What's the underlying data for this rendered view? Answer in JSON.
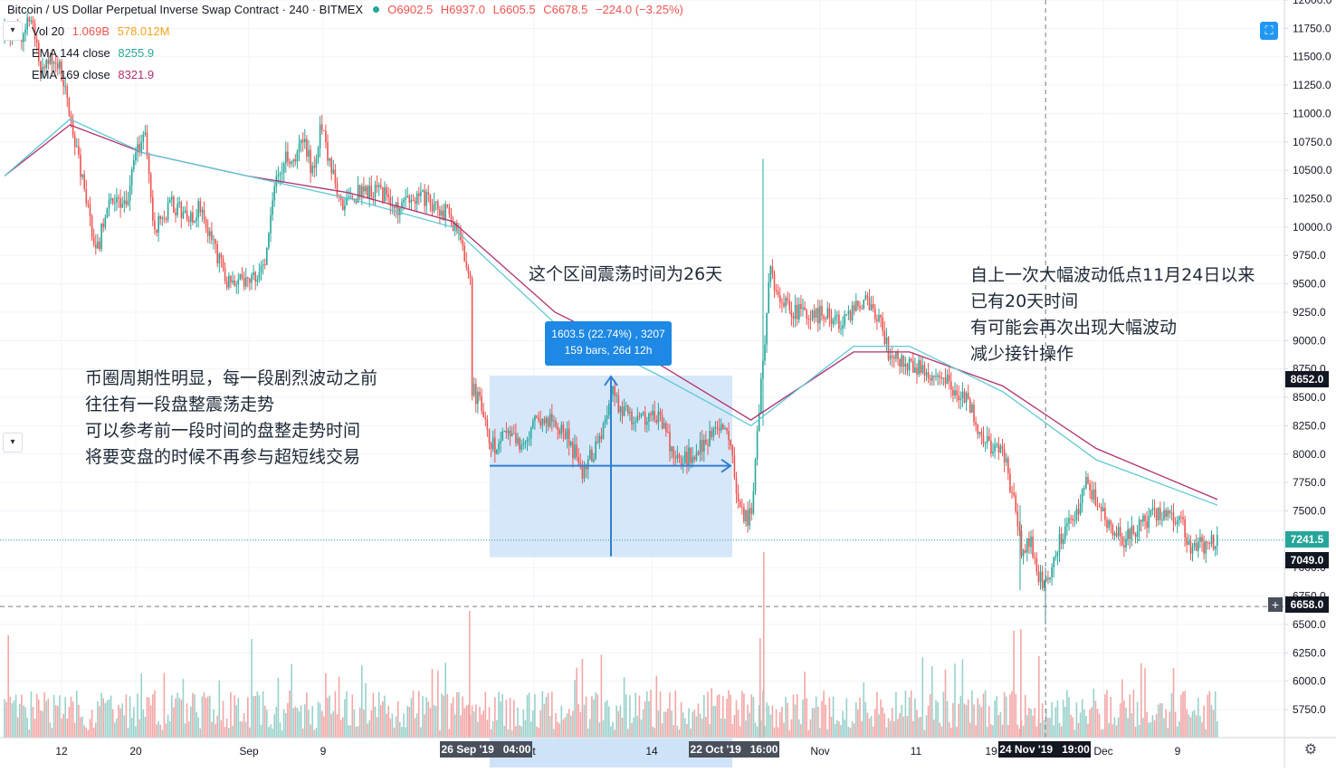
{
  "header": {
    "symbol": "Bitcoin / US Dollar Perpetual Inverse Swap Contract · 240 · BITMEX",
    "ohlc": {
      "open": "O6902.5",
      "high": "H6937.0",
      "low": "L6605.5",
      "close": "C6678.5",
      "change": "−224.0 (−3.25%)"
    }
  },
  "indicators": {
    "vol": {
      "label": "Vol 20",
      "v1": "1.069B",
      "v2": "578.012M"
    },
    "ema144": {
      "label": "EMA 144 close",
      "value": "8255.9"
    },
    "ema169": {
      "label": "EMA 169 close",
      "value": "8321.9"
    }
  },
  "annotations": {
    "range_title": "这个区间震荡时间为26天",
    "left_note": [
      "币圈周期性明显，每一段剧烈波动之前",
      "往往有一段盘整震荡走势",
      "可以参考前一段时间的盘整走势时间",
      "将要变盘的时候不再参与超短线交易"
    ],
    "right_note": [
      "自上一次大幅波动低点11月24日以来",
      "已有20天时间",
      "有可能会再次出现大幅波动",
      "减少接针操作"
    ],
    "measure_line1": "1603.5 (22.74%) , 3207",
    "measure_line2": "159 bars, 26d 12h"
  },
  "price_labels": {
    "ema169": "8652.0",
    "last": "7241.5",
    "ema144": "7049.0",
    "crosshair": "6658.0"
  },
  "time_labels": {
    "start": "26 Sep '19   04:00",
    "end": "22 Oct '19   16:00",
    "cross": "24 Nov '19   19:00"
  },
  "colors": {
    "up": "#26a69a",
    "down": "#ef5350",
    "vol_up": "#99d1cb",
    "vol_down": "#f4a6a6",
    "ema144": "#5ec8d6",
    "ema169": "#b0306e",
    "measure_fill": "#cfe3f8",
    "measure_line": "#2f80d0",
    "label_blue": "#1e88e5",
    "label_dark": "#131722"
  },
  "icons": [
    "gear-icon",
    "chevron-down-icon",
    "fullscreen-icon",
    "plus-icon"
  ],
  "chart_data": {
    "type": "candlestick",
    "title": "Bitcoin / US Dollar Perpetual Inverse Swap Contract · 240 · BITMEX",
    "ylim": [
      5500,
      12000
    ],
    "y_ticks": [
      5750,
      6000,
      6250,
      6500,
      6750,
      7000,
      7250,
      7500,
      7750,
      8000,
      8250,
      8500,
      8750,
      9000,
      9250,
      9500,
      9750,
      10000,
      10250,
      10500,
      10750,
      11000,
      11250,
      11500,
      11750,
      12000
    ],
    "y_tick_labels": [
      "5750.0",
      "6000.0",
      "6250.0",
      "6500.0",
      "6750.0",
      "7000.0",
      "7250.0",
      "7500.0",
      "7750.0",
      "8000.0",
      "8250.0",
      "8500.0",
      "8750.0",
      "9000.0",
      "9250.0",
      "9500.0",
      "9750.0",
      "10000.0",
      "10250.0",
      "10500.0",
      "10750.0",
      "11000.0",
      "11250.0",
      "11500.0",
      "11750.0",
      "12000.0"
    ],
    "x_labels": [
      "12",
      "20",
      "Sep",
      "9",
      "t",
      "14",
      "Nov",
      "11",
      "19",
      "Dec",
      "9"
    ],
    "price_path": [
      {
        "date": "2019-08-05",
        "price": 11700
      },
      {
        "date": "2019-08-07",
        "price": 11700
      },
      {
        "date": "2019-08-08",
        "price": 11850
      },
      {
        "date": "2019-08-09",
        "price": 11350
      },
      {
        "date": "2019-08-10",
        "price": 11500
      },
      {
        "date": "2019-08-11",
        "price": 11400
      },
      {
        "date": "2019-08-12",
        "price": 11000
      },
      {
        "date": "2019-08-14",
        "price": 10100
      },
      {
        "date": "2019-08-15",
        "price": 9800
      },
      {
        "date": "2019-08-16",
        "price": 10200
      },
      {
        "date": "2019-08-17",
        "price": 10300
      },
      {
        "date": "2019-08-18",
        "price": 10150
      },
      {
        "date": "2019-08-19",
        "price": 10600
      },
      {
        "date": "2019-08-20",
        "price": 10850
      },
      {
        "date": "2019-08-21",
        "price": 10000
      },
      {
        "date": "2019-08-23",
        "price": 10200
      },
      {
        "date": "2019-08-25",
        "price": 10050
      },
      {
        "date": "2019-08-26",
        "price": 10200
      },
      {
        "date": "2019-08-28",
        "price": 9700
      },
      {
        "date": "2019-08-29",
        "price": 9500
      },
      {
        "date": "2019-09-01",
        "price": 9600
      },
      {
        "date": "2019-09-02",
        "price": 9700
      },
      {
        "date": "2019-09-03",
        "price": 10400
      },
      {
        "date": "2019-09-04",
        "price": 10600
      },
      {
        "date": "2019-09-05",
        "price": 10600
      },
      {
        "date": "2019-09-06",
        "price": 10750
      },
      {
        "date": "2019-09-07",
        "price": 10500
      },
      {
        "date": "2019-09-08",
        "price": 10900
      },
      {
        "date": "2019-09-09",
        "price": 10500
      },
      {
        "date": "2019-09-10",
        "price": 10200
      },
      {
        "date": "2019-09-12",
        "price": 10300
      },
      {
        "date": "2019-09-14",
        "price": 10350
      },
      {
        "date": "2019-09-16",
        "price": 10150
      },
      {
        "date": "2019-09-17",
        "price": 10200
      },
      {
        "date": "2019-09-19",
        "price": 10250
      },
      {
        "date": "2019-09-20",
        "price": 10200
      },
      {
        "date": "2019-09-21",
        "price": 10150
      },
      {
        "date": "2019-09-22",
        "price": 10050
      },
      {
        "date": "2019-09-23",
        "price": 9850
      },
      {
        "date": "2019-09-24",
        "price": 9500
      },
      {
        "date": "2019-09-24",
        "price": 8600
      },
      {
        "date": "2019-09-25",
        "price": 8450
      },
      {
        "date": "2019-09-26",
        "price": 8050
      },
      {
        "date": "2019-09-27",
        "price": 8100
      },
      {
        "date": "2019-09-28",
        "price": 8150
      },
      {
        "date": "2019-09-30",
        "price": 8050
      },
      {
        "date": "2019-10-01",
        "price": 8350
      },
      {
        "date": "2019-10-02",
        "price": 8300
      },
      {
        "date": "2019-10-04",
        "price": 8200
      },
      {
        "date": "2019-10-06",
        "price": 7850
      },
      {
        "date": "2019-10-08",
        "price": 8150
      },
      {
        "date": "2019-10-09",
        "price": 8550
      },
      {
        "date": "2019-10-10",
        "price": 8400
      },
      {
        "date": "2019-10-12",
        "price": 8300
      },
      {
        "date": "2019-10-14",
        "price": 8350
      },
      {
        "date": "2019-10-16",
        "price": 7950
      },
      {
        "date": "2019-10-18",
        "price": 8000
      },
      {
        "date": "2019-10-20",
        "price": 8200
      },
      {
        "date": "2019-10-21",
        "price": 8250
      },
      {
        "date": "2019-10-22",
        "price": 7950
      },
      {
        "date": "2019-10-23",
        "price": 7450
      },
      {
        "date": "2019-10-24",
        "price": 7450
      },
      {
        "date": "2019-10-25",
        "price": 8500
      },
      {
        "date": "2019-10-26",
        "price": 9600
      },
      {
        "date": "2019-10-27",
        "price": 9400
      },
      {
        "date": "2019-10-28",
        "price": 9300
      },
      {
        "date": "2019-10-30",
        "price": 9200
      },
      {
        "date": "2019-11-01",
        "price": 9250
      },
      {
        "date": "2019-11-03",
        "price": 9150
      },
      {
        "date": "2019-11-05",
        "price": 9350
      },
      {
        "date": "2019-11-07",
        "price": 9150
      },
      {
        "date": "2019-11-08",
        "price": 8800
      },
      {
        "date": "2019-11-09",
        "price": 8850
      },
      {
        "date": "2019-11-11",
        "price": 8750
      },
      {
        "date": "2019-11-13",
        "price": 8700
      },
      {
        "date": "2019-11-15",
        "price": 8550
      },
      {
        "date": "2019-11-16",
        "price": 8500
      },
      {
        "date": "2019-11-18",
        "price": 8100
      },
      {
        "date": "2019-11-20",
        "price": 8050
      },
      {
        "date": "2019-11-21",
        "price": 7650
      },
      {
        "date": "2019-11-22",
        "price": 7150
      },
      {
        "date": "2019-11-23",
        "price": 7200
      },
      {
        "date": "2019-11-24",
        "price": 6900
      },
      {
        "date": "2019-11-25",
        "price": 6900
      },
      {
        "date": "2019-11-26",
        "price": 7250
      },
      {
        "date": "2019-11-28",
        "price": 7500
      },
      {
        "date": "2019-11-29",
        "price": 7750
      },
      {
        "date": "2019-11-30",
        "price": 7600
      },
      {
        "date": "2019-12-01",
        "price": 7400
      },
      {
        "date": "2019-12-03",
        "price": 7250
      },
      {
        "date": "2019-12-05",
        "price": 7400
      },
      {
        "date": "2019-12-07",
        "price": 7500
      },
      {
        "date": "2019-12-09",
        "price": 7450
      },
      {
        "date": "2019-12-10",
        "price": 7200
      },
      {
        "date": "2019-12-12",
        "price": 7200
      },
      {
        "date": "2019-12-13",
        "price": 7250
      }
    ],
    "ema144": [
      {
        "date": "2019-08-05",
        "price": 10450
      },
      {
        "date": "2019-08-12",
        "price": 10950
      },
      {
        "date": "2019-08-20",
        "price": 10650
      },
      {
        "date": "2019-08-31",
        "price": 10450
      },
      {
        "date": "2019-09-11",
        "price": 10250
      },
      {
        "date": "2019-09-22",
        "price": 10000
      },
      {
        "date": "2019-10-03",
        "price": 9150
      },
      {
        "date": "2019-10-14",
        "price": 8700
      },
      {
        "date": "2019-10-24",
        "price": 8250
      },
      {
        "date": "2019-11-04",
        "price": 8950
      },
      {
        "date": "2019-11-10",
        "price": 8950
      },
      {
        "date": "2019-11-20",
        "price": 8550
      },
      {
        "date": "2019-11-30",
        "price": 7950
      },
      {
        "date": "2019-12-13",
        "price": 7550
      }
    ],
    "ema169": [
      {
        "date": "2019-08-05",
        "price": 10450
      },
      {
        "date": "2019-08-12",
        "price": 10900
      },
      {
        "date": "2019-08-20",
        "price": 10650
      },
      {
        "date": "2019-08-31",
        "price": 10450
      },
      {
        "date": "2019-09-11",
        "price": 10300
      },
      {
        "date": "2019-09-22",
        "price": 10050
      },
      {
        "date": "2019-10-03",
        "price": 9250
      },
      {
        "date": "2019-10-14",
        "price": 8800
      },
      {
        "date": "2019-10-24",
        "price": 8300
      },
      {
        "date": "2019-11-04",
        "price": 8900
      },
      {
        "date": "2019-11-10",
        "price": 8900
      },
      {
        "date": "2019-11-20",
        "price": 8600
      },
      {
        "date": "2019-11-30",
        "price": 8050
      },
      {
        "date": "2019-12-13",
        "price": 7600
      }
    ],
    "ema_direction_fill": "bands",
    "measure_range": {
      "start_date": "2019-09-26",
      "end_date": "2019-10-22",
      "low": 7100,
      "high": 8700
    },
    "horizontal_lines": [
      {
        "price": 7241.5,
        "style": "dotted-teal"
      },
      {
        "price": 6658.0,
        "style": "dashed-gray"
      }
    ],
    "volume": {
      "series": "per-bar volume bars (approx.)"
    }
  }
}
